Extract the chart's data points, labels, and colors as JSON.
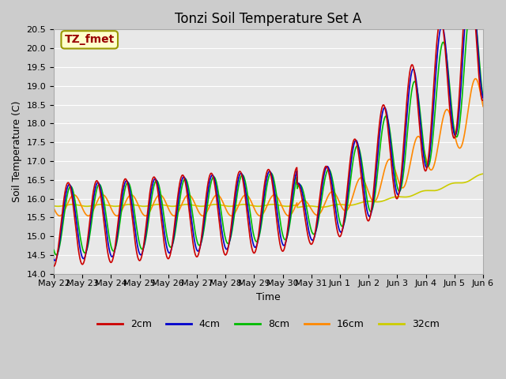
{
  "title": "Tonzi Soil Temperature Set A",
  "xlabel": "Time",
  "ylabel": "Soil Temperature (C)",
  "ylim": [
    14.0,
    20.5
  ],
  "series_colors": [
    "#cc0000",
    "#0000cc",
    "#00bb00",
    "#ff8800",
    "#cccc00"
  ],
  "series_labels": [
    "2cm",
    "4cm",
    "8cm",
    "16cm",
    "32cm"
  ],
  "annotation_text": "TZ_fmet",
  "annotation_color": "#990000",
  "annotation_bg": "#ffffcc",
  "annotation_border": "#999900",
  "plot_bg": "#e8e8e8",
  "fig_bg": "#cccccc",
  "grid_color": "#ffffff",
  "title_fontsize": 12,
  "axis_fontsize": 9,
  "tick_fontsize": 8,
  "legend_fontsize": 9,
  "xtick_labels": [
    "May 22",
    "May 23",
    "May 24",
    "May 25",
    "May 26",
    "May 27",
    "May 28",
    "May 29",
    "May 30",
    "May 31",
    "Jun 1",
    "Jun 2",
    "Jun 3",
    "Jun 4",
    "Jun 5",
    "Jun 6"
  ]
}
